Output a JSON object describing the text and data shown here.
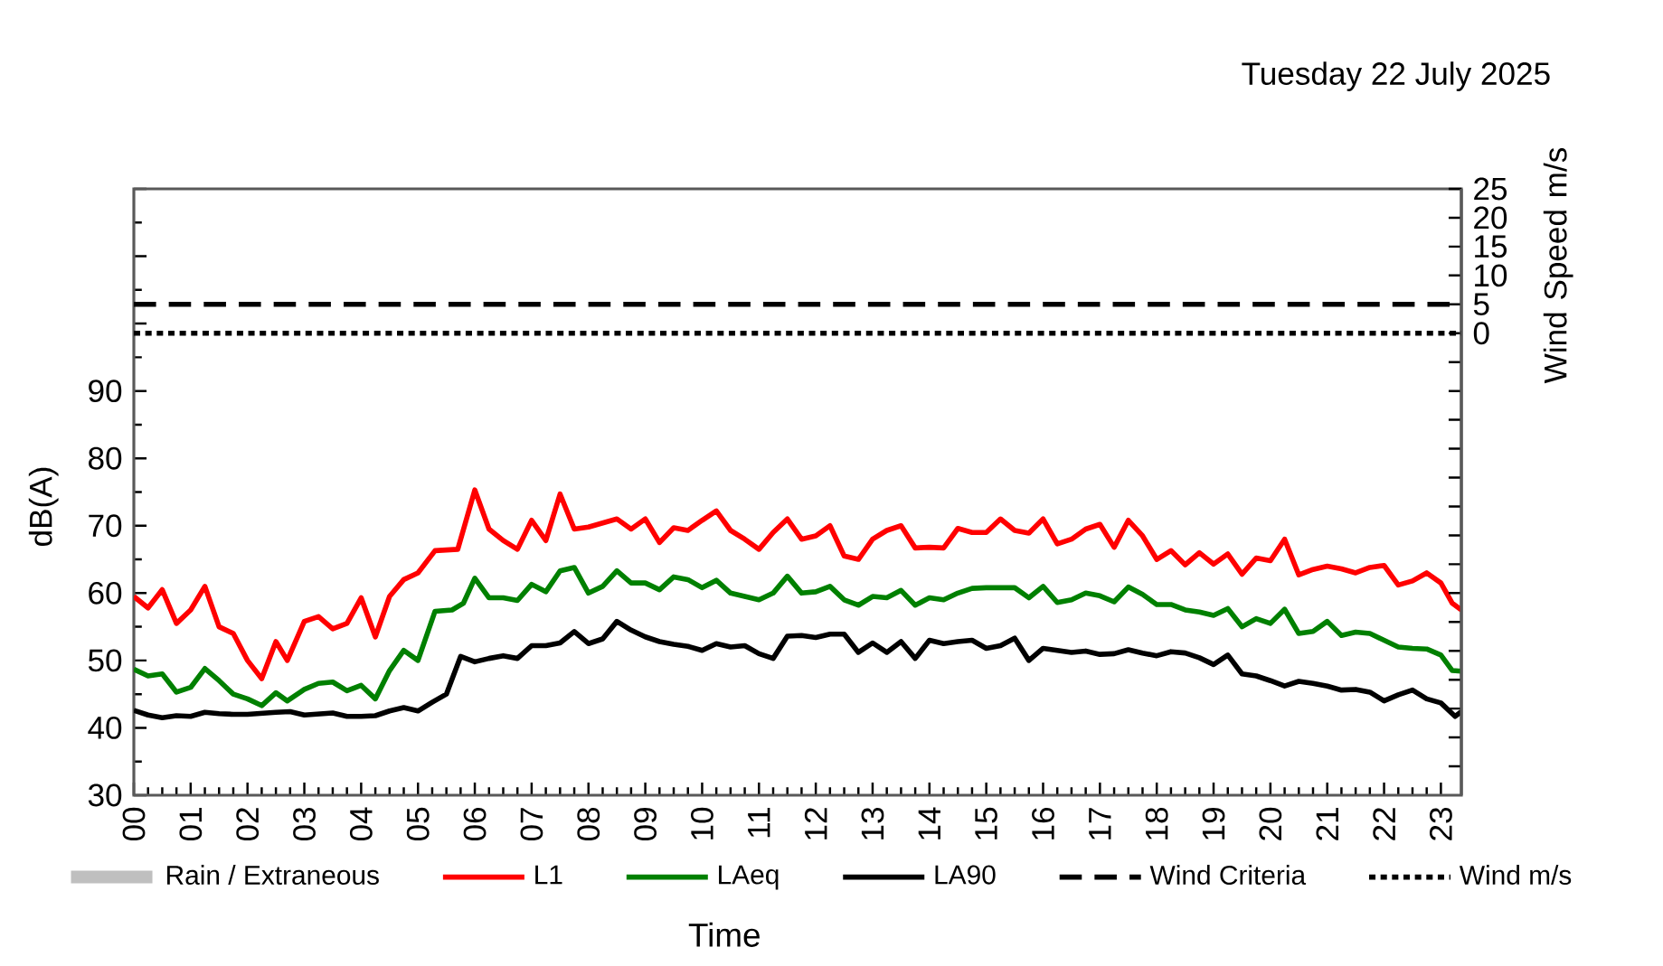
{
  "chart_data": {
    "type": "line",
    "title": "Tuesday 22 July 2025",
    "xlabel": "Time",
    "ylabel": "dB(A)",
    "y2label": "Wind Speed m/s",
    "xlim": [
      0,
      23.36
    ],
    "xticks": [
      {
        "value": 0,
        "label": "00"
      },
      {
        "value": 1,
        "label": "01"
      },
      {
        "value": 2,
        "label": "02"
      },
      {
        "value": 3,
        "label": "03"
      },
      {
        "value": 4,
        "label": "04"
      },
      {
        "value": 5,
        "label": "05"
      },
      {
        "value": 6,
        "label": "06"
      },
      {
        "value": 7,
        "label": "07"
      },
      {
        "value": 8,
        "label": "08"
      },
      {
        "value": 9,
        "label": "09"
      },
      {
        "value": 10,
        "label": "10"
      },
      {
        "value": 11,
        "label": "11"
      },
      {
        "value": 12,
        "label": "12"
      },
      {
        "value": 13,
        "label": "13"
      },
      {
        "value": 14,
        "label": "14"
      },
      {
        "value": 15,
        "label": "15"
      },
      {
        "value": 16,
        "label": "16"
      },
      {
        "value": 17,
        "label": "17"
      },
      {
        "value": 18,
        "label": "18"
      },
      {
        "value": 19,
        "label": "19"
      },
      {
        "value": 20,
        "label": "20"
      },
      {
        "value": 21,
        "label": "21"
      },
      {
        "value": 22,
        "label": "22"
      },
      {
        "value": 23,
        "label": "23"
      }
    ],
    "ylim": [
      30,
      120
    ],
    "yticks": [
      30,
      40,
      50,
      60,
      70,
      80,
      90,
      {
        "value": 100,
        "label": null
      },
      {
        "value": 110,
        "label": null
      },
      {
        "value": 120,
        "label": null
      }
    ],
    "y2lim": [
      -80,
      25
    ],
    "y2ticks": [
      {
        "value": -75,
        "label": null
      },
      {
        "value": -70,
        "label": null
      },
      {
        "value": -65,
        "label": null
      },
      {
        "value": -60,
        "label": null
      },
      {
        "value": -55,
        "label": null
      },
      {
        "value": -50,
        "label": null
      },
      {
        "value": -45,
        "label": null
      },
      {
        "value": -40,
        "label": null
      },
      {
        "value": -35,
        "label": null
      },
      {
        "value": -30,
        "label": null
      },
      {
        "value": -25,
        "label": null
      },
      {
        "value": -20,
        "label": null
      },
      {
        "value": -15,
        "label": null
      },
      {
        "value": -10,
        "label": null
      },
      {
        "value": -5,
        "label": null
      },
      0,
      5,
      10,
      15,
      20,
      25
    ],
    "legend": "bottom",
    "series": [
      {
        "name": "Rain / Extraneous",
        "color": "#bfbfbf"
      },
      {
        "name": "L1",
        "color": "#ff0000",
        "x": [
          0,
          0.25,
          0.5,
          0.75,
          1,
          1.25,
          1.5,
          1.75,
          2,
          2.25,
          2.5,
          2.7,
          3,
          3.25,
          3.5,
          3.75,
          4,
          4.25,
          4.5,
          4.75,
          5,
          5.3,
          5.7,
          6,
          6.25,
          6.5,
          6.75,
          7,
          7.25,
          7.5,
          7.75,
          8,
          8.5,
          8.75,
          9,
          9.25,
          9.5,
          9.75,
          10,
          10.25,
          10.5,
          10.75,
          11,
          11.25,
          11.5,
          11.75,
          12,
          12.25,
          12.5,
          12.75,
          13,
          13.25,
          13.5,
          13.75,
          14,
          14.25,
          14.5,
          14.75,
          15,
          15.25,
          15.5,
          15.75,
          16,
          16.25,
          16.5,
          16.75,
          17,
          17.25,
          17.5,
          17.75,
          18,
          18.25,
          18.5,
          18.75,
          19,
          19.25,
          19.5,
          19.75,
          20,
          20.25,
          20.5,
          20.75,
          21,
          21.25,
          21.5,
          21.75,
          22,
          22.25,
          22.5,
          22.75,
          23,
          23.2,
          23.36
        ],
        "values": [
          59.5,
          57.8,
          60.5,
          55.5,
          57.5,
          61,
          55,
          54,
          50,
          47.3,
          52.8,
          50,
          55.8,
          56.5,
          54.7,
          55.5,
          59.3,
          53.5,
          59.5,
          62,
          63,
          66.3,
          66.5,
          75.3,
          69.5,
          67.8,
          66.5,
          70.8,
          67.8,
          74.7,
          69.5,
          69.8,
          71,
          69.5,
          71,
          67.5,
          69.7,
          69.3,
          70.8,
          72.2,
          69.3,
          68,
          66.5,
          69,
          71,
          68,
          68.5,
          70,
          65.5,
          65,
          68,
          69.3,
          70,
          66.7,
          66.8,
          66.7,
          69.6,
          69,
          69,
          71,
          69.3,
          68.9,
          71,
          67.3,
          68,
          69.5,
          70.2,
          66.8,
          70.8,
          68.5,
          65,
          66.3,
          64.2,
          66,
          64.3,
          65.8,
          62.8,
          65.2,
          64.8,
          68,
          62.7,
          63.5,
          64,
          63.6,
          63,
          63.8,
          64.1,
          61.2,
          61.8,
          63,
          61.5,
          58.5,
          57.5
        ]
      },
      {
        "name": "LAeq",
        "color": "#008000",
        "x": [
          0,
          0.25,
          0.5,
          0.75,
          1,
          1.25,
          1.5,
          1.75,
          2,
          2.25,
          2.5,
          2.7,
          3,
          3.25,
          3.5,
          3.75,
          4,
          4.25,
          4.5,
          4.75,
          5,
          5.3,
          5.6,
          5.8,
          6,
          6.25,
          6.5,
          6.75,
          7,
          7.25,
          7.5,
          7.75,
          8,
          8.25,
          8.5,
          8.75,
          9,
          9.25,
          9.5,
          9.75,
          10,
          10.25,
          10.5,
          10.75,
          11,
          11.25,
          11.5,
          11.75,
          12,
          12.25,
          12.5,
          12.75,
          13,
          13.25,
          13.5,
          13.75,
          14,
          14.25,
          14.5,
          14.75,
          15,
          15.5,
          15.75,
          16,
          16.25,
          16.5,
          16.75,
          17,
          17.25,
          17.5,
          17.75,
          18,
          18.25,
          18.5,
          18.75,
          19,
          19.25,
          19.5,
          19.75,
          20,
          20.25,
          20.5,
          20.75,
          21,
          21.25,
          21.5,
          21.75,
          22,
          22.25,
          22.5,
          22.75,
          23,
          23.2,
          23.36
        ],
        "values": [
          48.7,
          47.7,
          48,
          45.3,
          46,
          48.8,
          47,
          45,
          44.3,
          43.3,
          45.2,
          44,
          45.7,
          46.6,
          46.8,
          45.5,
          46.3,
          44.3,
          48.5,
          51.5,
          50,
          57.3,
          57.5,
          58.5,
          62.2,
          59.3,
          59.3,
          58.9,
          61.3,
          60.2,
          63.3,
          63.8,
          60,
          61,
          63.3,
          61.5,
          61.5,
          60.5,
          62.4,
          62,
          60.8,
          61.9,
          60,
          59.5,
          59,
          60,
          62.5,
          60,
          60.2,
          61,
          59,
          58.2,
          59.5,
          59.3,
          60.4,
          58.2,
          59.3,
          59,
          60,
          60.7,
          60.8,
          60.8,
          59.3,
          61,
          58.6,
          59,
          60,
          59.6,
          58.7,
          60.9,
          59.8,
          58.3,
          58.3,
          57.5,
          57.2,
          56.7,
          57.7,
          55,
          56.2,
          55.5,
          57.6,
          54,
          54.3,
          55.8,
          53.7,
          54.2,
          54,
          53,
          52,
          51.8,
          51.7,
          50.8,
          48.5,
          48.4
        ]
      },
      {
        "name": "LA90",
        "color": "#000000",
        "x": [
          0,
          0.25,
          0.5,
          0.75,
          1,
          1.25,
          1.5,
          1.75,
          2,
          2.5,
          2.75,
          3,
          3.5,
          3.75,
          4,
          4.25,
          4.5,
          4.75,
          5,
          5.25,
          5.5,
          5.75,
          6,
          6.25,
          6.5,
          6.75,
          7,
          7.25,
          7.5,
          7.75,
          8,
          8.25,
          8.5,
          8.75,
          9,
          9.25,
          9.5,
          9.75,
          10,
          10.25,
          10.5,
          10.75,
          11,
          11.25,
          11.5,
          11.75,
          12,
          12.25,
          12.5,
          12.75,
          13,
          13.25,
          13.5,
          13.75,
          14,
          14.25,
          14.5,
          14.75,
          15,
          15.25,
          15.5,
          15.75,
          16,
          16.25,
          16.5,
          16.75,
          17,
          17.25,
          17.5,
          17.75,
          18,
          18.25,
          18.5,
          18.75,
          19,
          19.25,
          19.5,
          19.75,
          20,
          20.25,
          20.5,
          20.75,
          21,
          21.25,
          21.5,
          21.75,
          22,
          22.25,
          22.5,
          22.75,
          23,
          23.25,
          23.36
        ],
        "values": [
          42.6,
          41.9,
          41.5,
          41.8,
          41.7,
          42.3,
          42.1,
          42,
          42,
          42.3,
          42.4,
          41.9,
          42.2,
          41.7,
          41.7,
          41.8,
          42.5,
          43,
          42.5,
          43.8,
          45,
          50.6,
          49.8,
          50.3,
          50.7,
          50.3,
          52.2,
          52.2,
          52.6,
          54.3,
          52.5,
          53.2,
          55.8,
          54.5,
          53.5,
          52.8,
          52.4,
          52.1,
          51.5,
          52.5,
          52,
          52.2,
          51,
          50.3,
          53.6,
          53.7,
          53.4,
          53.9,
          53.9,
          51.2,
          52.6,
          51.2,
          52.8,
          50.3,
          53,
          52.5,
          52.8,
          53,
          51.8,
          52.2,
          53.3,
          50,
          51.8,
          51.5,
          51.2,
          51.4,
          50.9,
          51,
          51.6,
          51.1,
          50.7,
          51.3,
          51.1,
          50.4,
          49.4,
          50.8,
          48,
          47.7,
          47,
          46.2,
          46.9,
          46.6,
          46.2,
          45.6,
          45.7,
          45.3,
          44,
          44.9,
          45.6,
          44.3,
          43.7,
          41.7,
          42.4
        ]
      },
      {
        "name": "Wind Criteria",
        "color": "#000000",
        "axis": "y2",
        "line_style": "dashed",
        "x": [
          0,
          23.36
        ],
        "values": [
          5,
          5
        ]
      },
      {
        "name": "Wind m/s",
        "color": "#000000",
        "axis": "y2",
        "line_style": "dotted",
        "x": [
          0,
          23.36
        ],
        "values": [
          0,
          0
        ]
      }
    ]
  }
}
